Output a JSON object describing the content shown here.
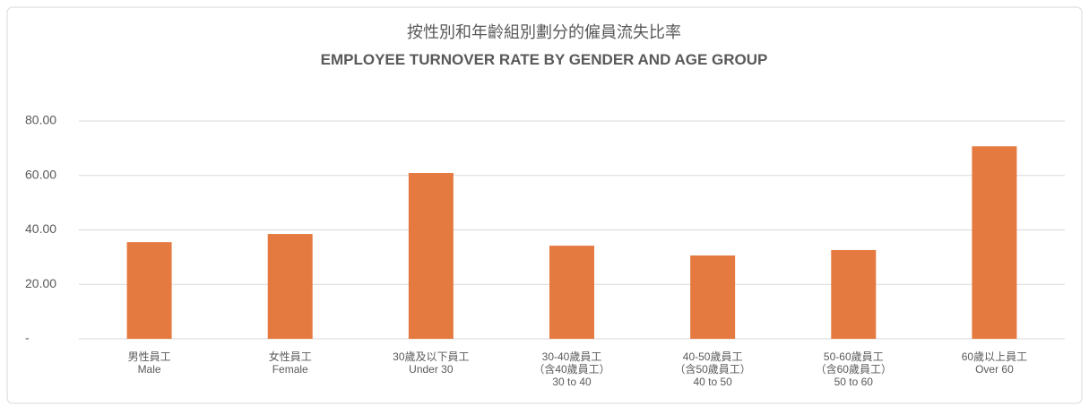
{
  "chart_data": {
    "type": "bar",
    "title": [
      "按性別和年齡組別劃分的僱員流失比率",
      "EMPLOYEE TURNOVER RATE BY GENDER AND AGE GROUP"
    ],
    "categories": [
      [
        "男性員工",
        "Male"
      ],
      [
        "女性員工",
        "Female"
      ],
      [
        "30歲及以下員工",
        "Under 30"
      ],
      [
        "30-40歲員工",
        "（含40歲員工）",
        "30 to 40"
      ],
      [
        "40-50歲員工",
        "（含50歲員工）",
        "40 to 50"
      ],
      [
        "50-60歲員工",
        "（含60歲員工）",
        "50 to 60"
      ],
      [
        "60歲以上員工",
        "Over 60"
      ]
    ],
    "values": [
      35.5,
      38.5,
      60.9,
      34.2,
      30.6,
      32.6,
      70.7
    ],
    "color": "#e57a40",
    "ylim": [
      0,
      80
    ],
    "yticks": [
      {
        "value": 0,
        "label": "-"
      },
      {
        "value": 20,
        "label": "20.00"
      },
      {
        "value": 40,
        "label": "40.00"
      },
      {
        "value": 60,
        "label": "60.00"
      },
      {
        "value": 80,
        "label": "80.00"
      }
    ],
    "grid": true
  }
}
